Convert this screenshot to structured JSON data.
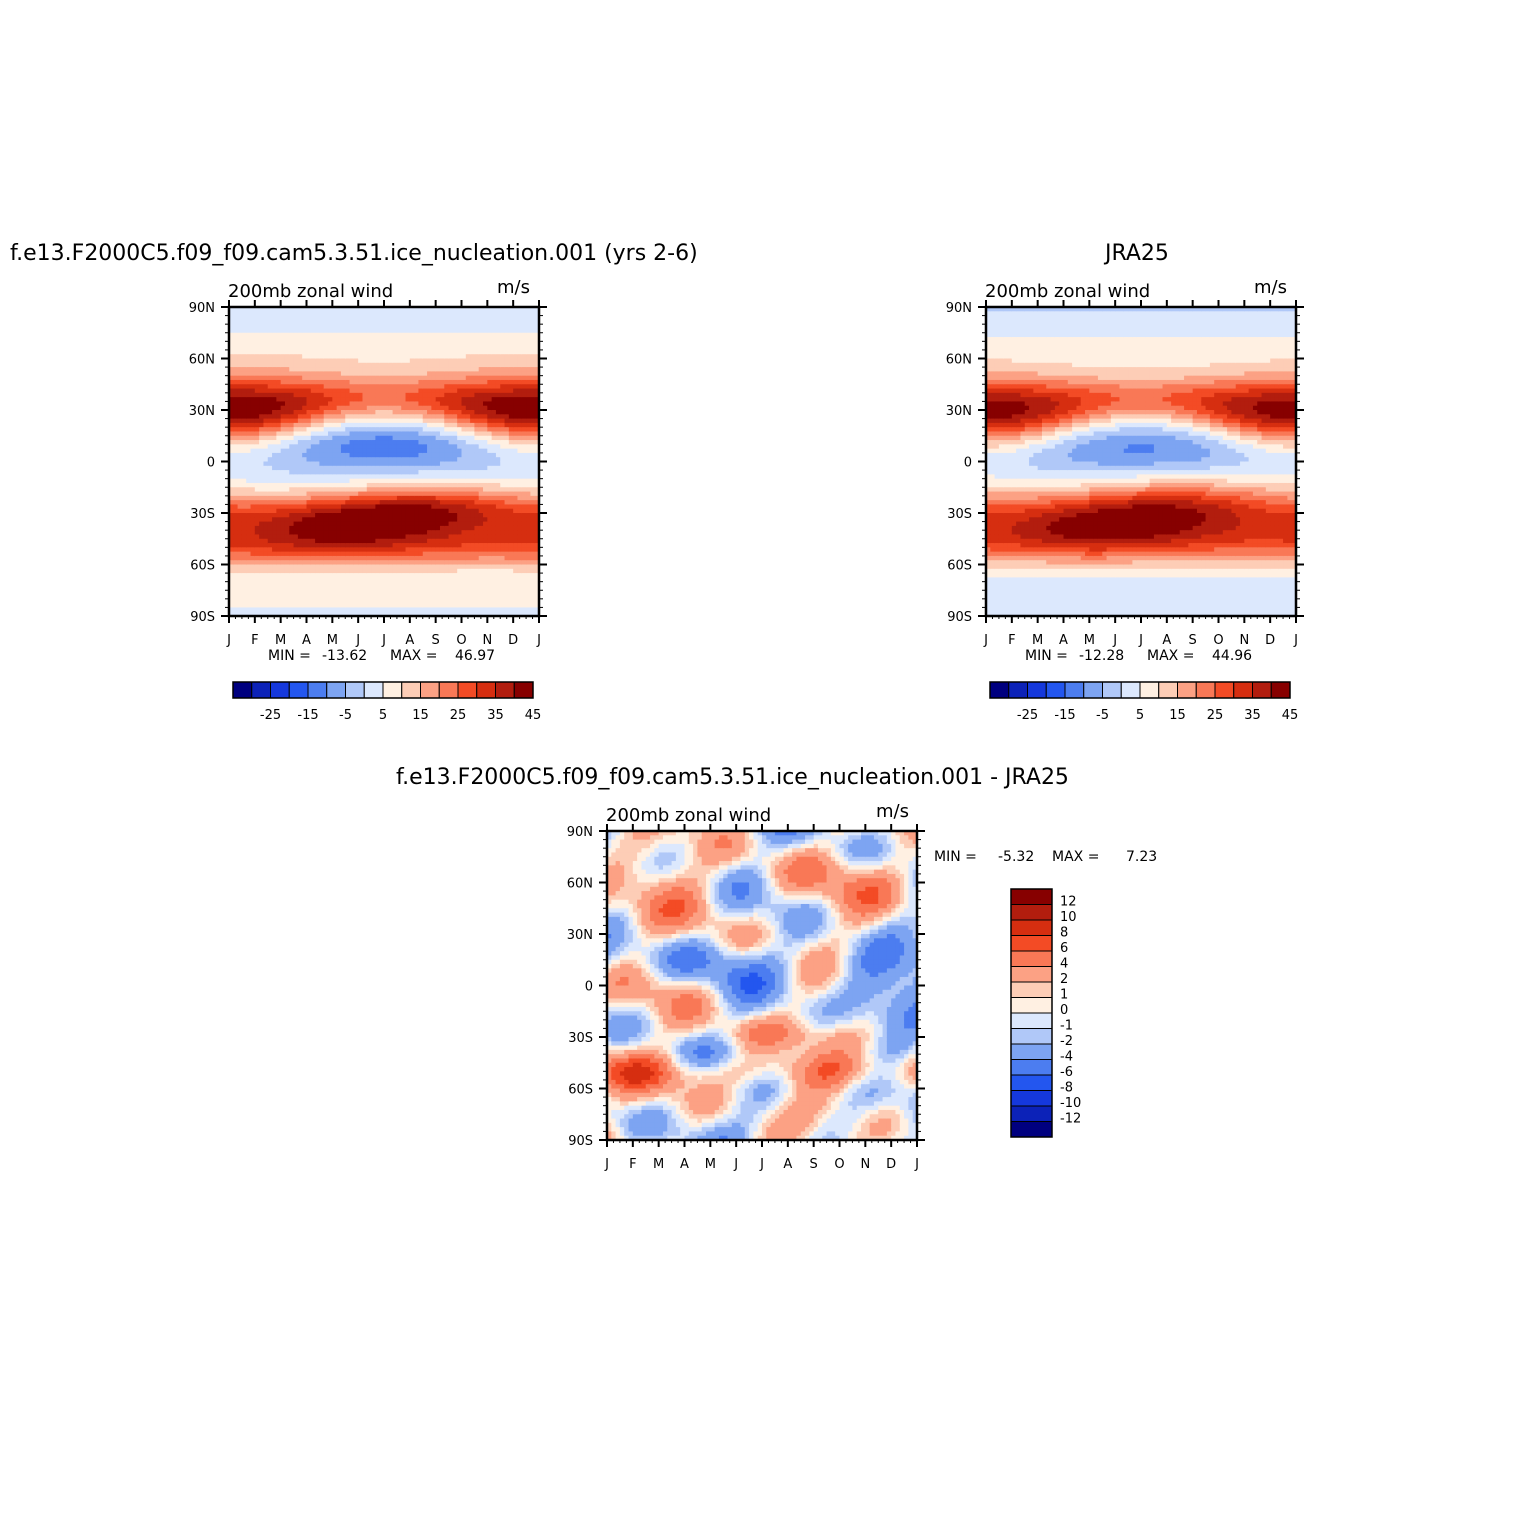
{
  "chart_data": [
    {
      "type": "heatmap",
      "title": "f.e13.F2000C5.f09_f09.cam5.3.51.ice_nucleation.001 (yrs 2-6)",
      "left_label": "200mb zonal wind",
      "units": "m/s",
      "x_tick_labels": [
        "J",
        "F",
        "M",
        "A",
        "M",
        "J",
        "J",
        "A",
        "S",
        "O",
        "N",
        "D",
        "J"
      ],
      "y_tick_labels": [
        "90N",
        "60N",
        "30N",
        "0",
        "30S",
        "60S",
        "90S"
      ],
      "ylim": [
        -90,
        90
      ],
      "min_label": "MIN =",
      "min_value": "-13.62",
      "max_label": "MAX =",
      "max_value": "46.97",
      "colorbar_labels": [
        "-25",
        "-15",
        "-5",
        "5",
        "15",
        "25",
        "35",
        "45"
      ]
    },
    {
      "type": "heatmap",
      "title": "JRA25",
      "left_label": "200mb zonal wind",
      "units": "m/s",
      "x_tick_labels": [
        "J",
        "F",
        "M",
        "A",
        "M",
        "J",
        "J",
        "A",
        "S",
        "O",
        "N",
        "D",
        "J"
      ],
      "y_tick_labels": [
        "90N",
        "60N",
        "30N",
        "0",
        "30S",
        "60S",
        "90S"
      ],
      "ylim": [
        -90,
        90
      ],
      "min_label": "MIN =",
      "min_value": "-12.28",
      "max_label": "MAX =",
      "max_value": "44.96",
      "colorbar_labels": [
        "-25",
        "-15",
        "-5",
        "5",
        "15",
        "25",
        "35",
        "45"
      ]
    },
    {
      "type": "heatmap",
      "title": "f.e13.F2000C5.f09_f09.cam5.3.51.ice_nucleation.001 - JRA25",
      "left_label": "200mb zonal wind",
      "units": "m/s",
      "x_tick_labels": [
        "J",
        "F",
        "M",
        "A",
        "M",
        "J",
        "J",
        "A",
        "S",
        "O",
        "N",
        "D",
        "J"
      ],
      "y_tick_labels": [
        "90N",
        "60N",
        "30N",
        "0",
        "30S",
        "60S",
        "90S"
      ],
      "ylim": [
        -90,
        90
      ],
      "min_label": "MIN =",
      "min_value": "-5.32",
      "max_label": "MAX =",
      "max_value": "7.23",
      "colorbar_labels": [
        "12",
        "10",
        "8",
        "6",
        "4",
        "2",
        "1",
        "0",
        "-1",
        "-2",
        "-4",
        "-6",
        "-8",
        "-10",
        "-12"
      ]
    }
  ],
  "palette": {
    "abs_colors": [
      "#00007f",
      "#0c22b8",
      "#1538dc",
      "#2356ef",
      "#4c7df0",
      "#7da4f2",
      "#b0c8f8",
      "#dce8fd",
      "#fff0e2",
      "#fdcdb6",
      "#fca184",
      "#f97856",
      "#f34b25",
      "#d62e10",
      "#b21d0e",
      "#870000"
    ],
    "diff_colors": [
      "#870000",
      "#b21d0e",
      "#d62e10",
      "#f34b25",
      "#f97856",
      "#fca184",
      "#fdcdb6",
      "#fff0e2",
      "#dce8fd",
      "#b0c8f8",
      "#7da4f2",
      "#4c7df0",
      "#2356ef",
      "#1538dc",
      "#0c22b8",
      "#00007f"
    ]
  }
}
